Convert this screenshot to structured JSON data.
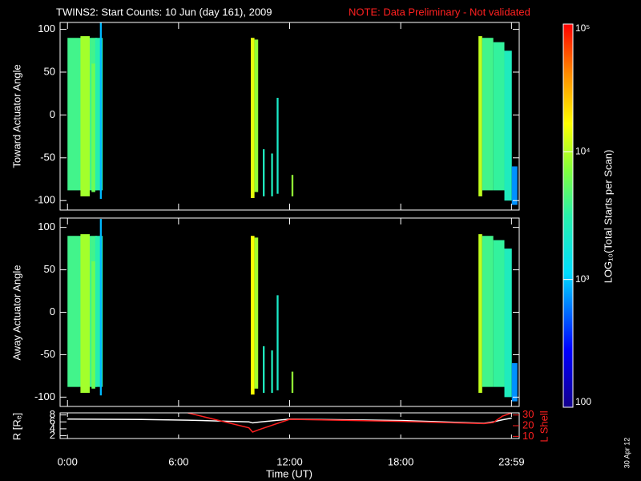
{
  "chart_data": [
    {
      "type": "heatmap",
      "title": "TWINS2: Start Counts: 10 Jun (day 161), 2009",
      "subtitle": "NOTE: Data Preliminary - Not validated",
      "ylabel": "Toward Actuator Angle",
      "xlim": [
        -0.4,
        24.4
      ],
      "xticks": [
        0,
        6,
        12,
        18,
        23.983
      ],
      "ylim": [
        -111,
        108
      ],
      "yticks": [
        -100,
        -50,
        0,
        50,
        100
      ],
      "zlim": [
        100,
        100000
      ],
      "zlog": true,
      "zticks": [
        100,
        {
          "value": 1000,
          "label": "10³"
        },
        {
          "value": 10000,
          "label": "10⁴"
        },
        {
          "value": 100000,
          "label": "10⁵"
        }
      ],
      "zlabel": "LOG₁₀(Total Starts per Scan)",
      "cells": [
        [
          0.0,
          1.6,
          -88,
          90,
          4000
        ],
        [
          0.7,
          1.2,
          -95,
          92,
          9000
        ],
        [
          1.3,
          1.5,
          -90,
          60,
          6000
        ],
        [
          1.5,
          1.9,
          -88,
          90,
          3000
        ],
        [
          1.75,
          1.85,
          -98,
          110,
          900
        ],
        [
          9.9,
          10.1,
          -97,
          90,
          14000
        ],
        [
          10.1,
          10.3,
          -90,
          88,
          8000
        ],
        [
          10.55,
          10.65,
          -95,
          -40,
          2500
        ],
        [
          11.0,
          11.1,
          -95,
          -45,
          2500
        ],
        [
          11.3,
          11.4,
          -92,
          20,
          2200
        ],
        [
          12.1,
          12.2,
          -95,
          -70,
          8000
        ],
        [
          22.2,
          22.4,
          -95,
          92,
          11000
        ],
        [
          22.4,
          23.0,
          -88,
          90,
          4000
        ],
        [
          23.0,
          23.6,
          -88,
          85,
          3500
        ],
        [
          23.6,
          24.0,
          -100,
          75,
          2500
        ],
        [
          24.0,
          24.3,
          -105,
          -60,
          700
        ]
      ]
    },
    {
      "type": "heatmap",
      "ylabel": "Away Actuator Angle",
      "xlim": [
        -0.4,
        24.4
      ],
      "xticks": [
        0,
        6,
        12,
        18,
        23.983
      ],
      "ylim": [
        -111,
        111
      ],
      "yticks": [
        -100,
        -50,
        0,
        50,
        100
      ],
      "zlim": [
        100,
        100000
      ],
      "zlog": true,
      "cells": [
        [
          0.0,
          1.6,
          -88,
          90,
          4000
        ],
        [
          0.7,
          1.2,
          -95,
          92,
          9000
        ],
        [
          1.3,
          1.5,
          -90,
          60,
          6000
        ],
        [
          1.5,
          1.9,
          -88,
          90,
          3000
        ],
        [
          1.75,
          1.85,
          -98,
          110,
          900
        ],
        [
          9.9,
          10.1,
          -97,
          90,
          16000
        ],
        [
          10.1,
          10.3,
          -90,
          88,
          9000
        ],
        [
          10.55,
          10.65,
          -95,
          -40,
          2500
        ],
        [
          11.0,
          11.1,
          -95,
          -45,
          2500
        ],
        [
          11.3,
          11.4,
          -92,
          20,
          2200
        ],
        [
          12.1,
          12.2,
          -95,
          -70,
          8000
        ],
        [
          22.2,
          22.4,
          -95,
          92,
          11000
        ],
        [
          22.4,
          23.0,
          -88,
          90,
          4000
        ],
        [
          23.0,
          23.6,
          -88,
          85,
          3500
        ],
        [
          23.6,
          24.0,
          -100,
          75,
          2500
        ],
        [
          24.0,
          24.3,
          -105,
          -60,
          700
        ]
      ]
    },
    {
      "type": "line",
      "ylabel": "R [Rₑ]",
      "y2label": "L Shell",
      "xlabel": "Time (UT)",
      "annotation": "30 Apr 12",
      "xlim": [
        -0.4,
        24.4
      ],
      "xticks": [
        {
          "value": 0,
          "label": "0:00"
        },
        {
          "value": 6,
          "label": "6:00"
        },
        {
          "value": 12,
          "label": "12:00"
        },
        {
          "value": 18,
          "label": "18:00"
        },
        {
          "value": 23.983,
          "label": "23:59"
        }
      ],
      "ylim": [
        1.2,
        8.6
      ],
      "yticks": [
        2,
        4,
        6,
        8
      ],
      "y2lim": [
        8,
        32
      ],
      "y2ticks": [
        10,
        20,
        30
      ],
      "x": [
        0,
        4,
        6.5,
        9.8,
        10,
        10.3,
        12,
        18,
        22.5,
        23,
        23.5,
        24
      ],
      "series": [
        {
          "color": "#ffffff",
          "values": [
            6.8,
            6.7,
            6.5,
            6.0,
            5.7,
            5.9,
            6.8,
            6.4,
            5.6,
            6.0,
            6.6,
            7.1
          ]
        },
        {
          "color": "#ff2020",
          "axis": "y2",
          "values": [
            null,
            null,
            32,
            18,
            14,
            16,
            26,
            24,
            22,
            23,
            29,
            32
          ]
        }
      ]
    }
  ]
}
